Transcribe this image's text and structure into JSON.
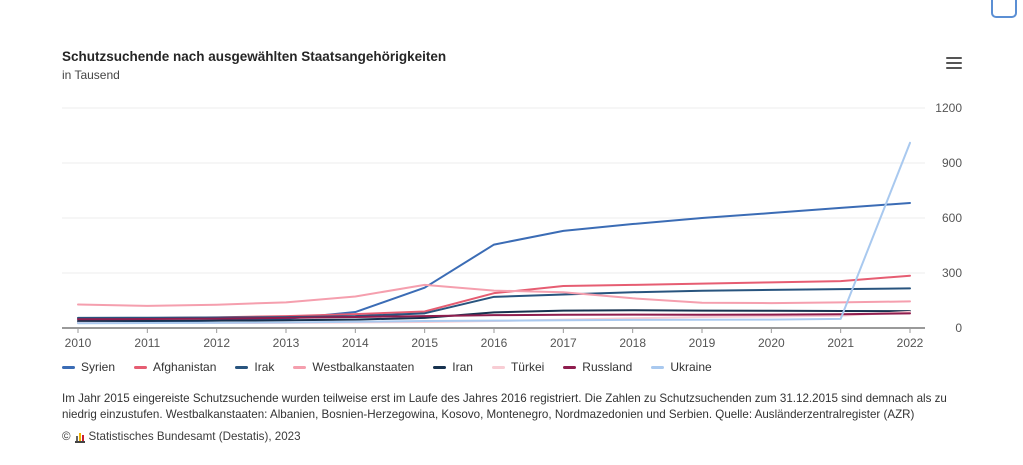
{
  "header": {
    "title": "Schutzsuchende nach ausgewählten Staatsangehörigkeiten",
    "subtitle": "in Tausend"
  },
  "icons": {
    "menu": "hamburger-menu",
    "corner": "clipboard-icon-partial"
  },
  "chart_data": {
    "type": "line",
    "title": "Schutzsuchende nach ausgewählten Staatsangehörigkeiten",
    "ylabel": "in Tausend",
    "x": [
      2010,
      2011,
      2012,
      2013,
      2014,
      2015,
      2016,
      2017,
      2018,
      2019,
      2020,
      2021,
      2022
    ],
    "ylim": [
      0,
      1200
    ],
    "yticks": [
      0,
      300,
      600,
      900,
      1200
    ],
    "grid": true,
    "legend_position": "bottom",
    "series": [
      {
        "name": "Syrien",
        "color": "#3b6cb5",
        "values": [
          30,
          33,
          40,
          50,
          87,
          220,
          455,
          530,
          567,
          600,
          627,
          655,
          682
        ]
      },
      {
        "name": "Afghanistan",
        "color": "#e65d72",
        "values": [
          52,
          54,
          58,
          65,
          76,
          90,
          190,
          229,
          235,
          242,
          249,
          256,
          285
        ]
      },
      {
        "name": "Irak",
        "color": "#28547e",
        "values": [
          55,
          56,
          57,
          59,
          65,
          80,
          170,
          183,
          195,
          203,
          208,
          212,
          216
        ]
      },
      {
        "name": "Westbalkanstaaten",
        "color": "#f59fae",
        "values": [
          128,
          121,
          127,
          140,
          172,
          235,
          204,
          195,
          162,
          138,
          136,
          140,
          145
        ]
      },
      {
        "name": "Iran",
        "color": "#17324f",
        "values": [
          38,
          39,
          40,
          42,
          46,
          55,
          85,
          95,
          97,
          95,
          94,
          93,
          92
        ]
      },
      {
        "name": "Türkei",
        "color": "#f8cdd4",
        "values": [
          28,
          27,
          27,
          28,
          30,
          33,
          38,
          46,
          53,
          60,
          63,
          67,
          88
        ]
      },
      {
        "name": "Russland",
        "color": "#8f1d4e",
        "values": [
          48,
          49,
          51,
          55,
          60,
          65,
          70,
          72,
          73,
          72,
          73,
          75,
          80
        ]
      },
      {
        "name": "Ukraine",
        "color": "#a9c9ef",
        "values": [
          26,
          27,
          28,
          30,
          34,
          38,
          40,
          42,
          44,
          45,
          46,
          50,
          1010
        ]
      }
    ]
  },
  "footnote": "Im Jahr 2015 eingereiste Schutzsuchende wurden teilweise erst im Laufe des Jahres 2016 registriert. Die Zahlen zu Schutzsuchenden zum 31.12.2015 sind demnach als zu niedrig einzustufen. Westbalkanstaaten: Albanien, Bosnien-Herzegowina, Kosovo, Montenegro, Nordmazedonien und Serbien. Quelle: Ausländerzentralregister (AZR)",
  "footer": {
    "copyright_prefix": "©",
    "copyright_text": "Statistisches Bundesamt (Destatis), 2023"
  }
}
